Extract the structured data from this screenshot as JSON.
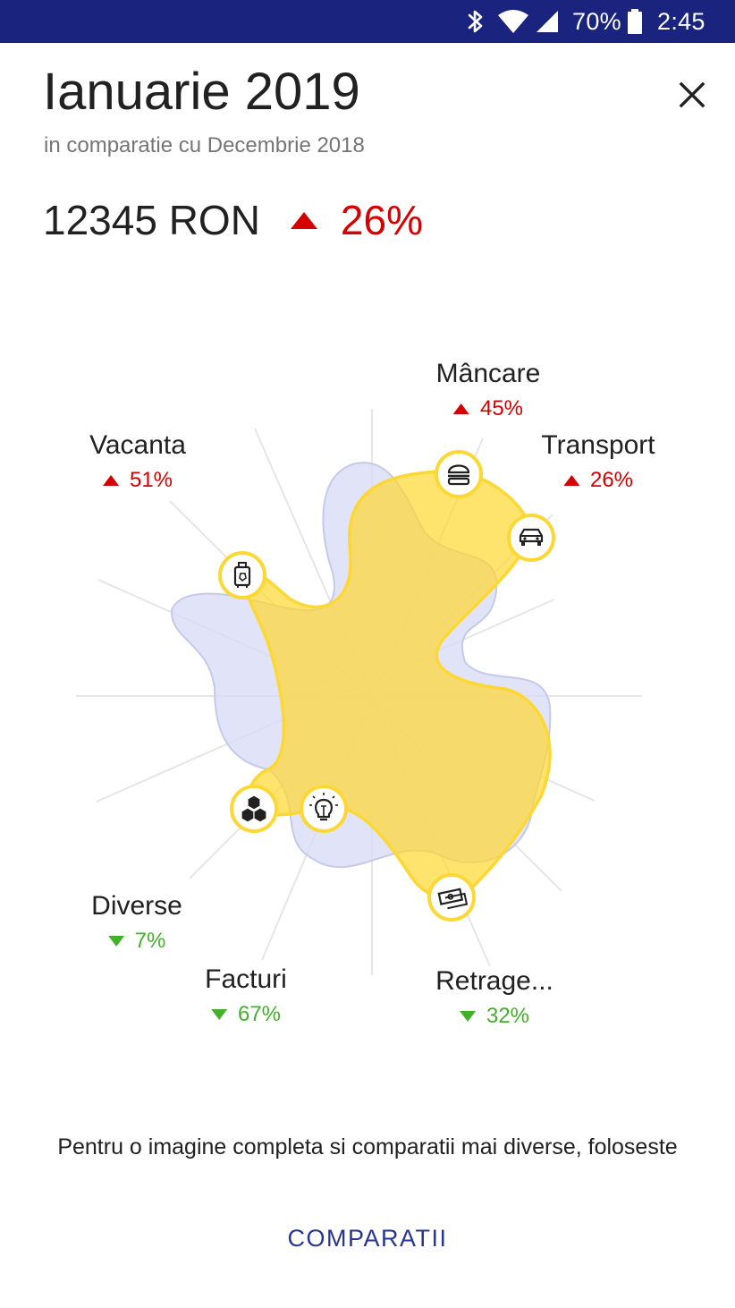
{
  "status_bar": {
    "background": "#1a237e",
    "icons": [
      "bluetooth-icon",
      "wifi-icon",
      "cell-signal-icon",
      "battery-icon"
    ],
    "battery": "70%",
    "time": "2:45"
  },
  "header": {
    "title": "Ianuarie 2019",
    "subtitle": "in comparatie cu Decembrie 2018",
    "close_icon": "close-icon"
  },
  "summary": {
    "amount": "12345 RON",
    "change_direction": "up",
    "change": "26%",
    "up_color": "#d50000",
    "down_color": "#43b02a"
  },
  "chart_data": {
    "type": "radar",
    "current_color": "#fdd835",
    "previous_color": "#c5cae9",
    "categories": [
      {
        "name": "Mâncare",
        "change": "45%",
        "direction": "up",
        "icon": "burger-icon"
      },
      {
        "name": "Transport",
        "change": "26%",
        "direction": "up",
        "icon": "car-icon"
      },
      {
        "name": "Retrage...",
        "change": "32%",
        "direction": "down",
        "icon": "cash-icon"
      },
      {
        "name": "Facturi",
        "change": "67%",
        "direction": "down",
        "icon": "lightbulb-icon"
      },
      {
        "name": "Diverse",
        "change": "7%",
        "direction": "down",
        "icon": "boxes-icon"
      },
      {
        "name": "Vacanta",
        "change": "51%",
        "direction": "up",
        "icon": "luggage-icon"
      }
    ]
  },
  "footer": {
    "text": "Pentru o imagine completa si comparatii mai diverse, foloseste",
    "cta": "COMPARATII"
  }
}
